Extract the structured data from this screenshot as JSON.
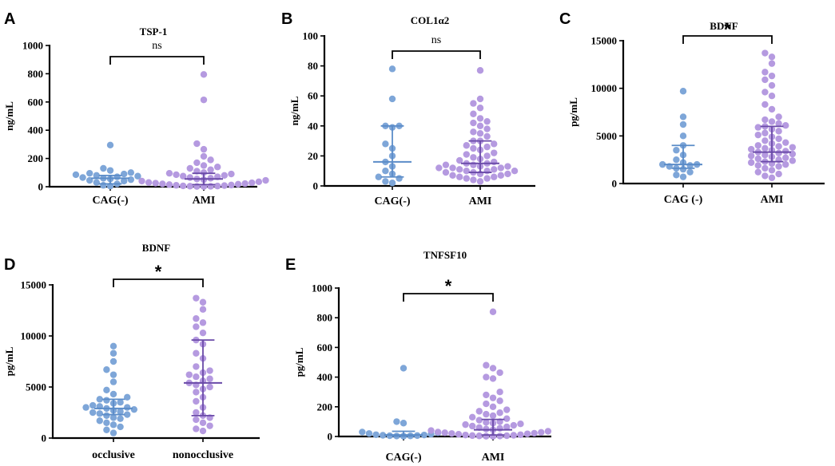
{
  "colors": {
    "blue": "#7ea6d8",
    "blue_line": "#5b8cc8",
    "purple": "#b59ae0",
    "purple_line": "#6a4aa8",
    "axis": "#000000"
  },
  "chart_data": [
    {
      "panel": "A",
      "type": "scatter",
      "title": "TSP-1",
      "ylabel": "ng/mL",
      "categories": [
        "CAG(-)",
        "AMI"
      ],
      "ylim": [
        0,
        1000
      ],
      "yticks": [
        0,
        200,
        400,
        600,
        800,
        1000
      ],
      "significance": "ns",
      "series": [
        {
          "name": "CAG(-)",
          "values": [
            295,
            130,
            115,
            100,
            95,
            90,
            85,
            80,
            75,
            70,
            65,
            60,
            55,
            50,
            45,
            40,
            30,
            20,
            10,
            5
          ],
          "median": 60,
          "q1": 20,
          "q3": 80
        },
        {
          "name": "AMI",
          "values": [
            795,
            615,
            305,
            265,
            215,
            190,
            170,
            150,
            140,
            130,
            120,
            110,
            100,
            95,
            90,
            85,
            80,
            75,
            70,
            65,
            60,
            55,
            50,
            45,
            40,
            35,
            30,
            28,
            25,
            22,
            20,
            18,
            15,
            12,
            10,
            8,
            6,
            5,
            4,
            3,
            2,
            1
          ],
          "median": 55,
          "q1": 15,
          "q3": 95
        }
      ]
    },
    {
      "panel": "B",
      "type": "scatter",
      "title": "COL1α2",
      "ylabel": "ng/mL",
      "categories": [
        "CAG(-)",
        "AMI"
      ],
      "ylim": [
        0,
        100
      ],
      "yticks": [
        0,
        20,
        40,
        60,
        80,
        100
      ],
      "significance": "ns",
      "series": [
        {
          "name": "CAG(-)",
          "values": [
            78,
            58,
            40,
            40,
            39,
            28,
            25,
            20,
            16,
            13,
            10,
            8,
            6,
            5,
            3,
            2
          ],
          "median": 16,
          "q1": 6,
          "q3": 40
        },
        {
          "name": "AMI",
          "values": [
            77,
            58,
            55,
            52,
            48,
            45,
            43,
            42,
            40,
            38,
            36,
            35,
            33,
            30,
            30,
            28,
            27,
            26,
            25,
            24,
            22,
            21,
            20,
            19,
            18,
            17,
            16,
            15,
            15,
            14,
            14,
            13,
            13,
            12,
            12,
            12,
            11,
            11,
            10,
            10,
            10,
            9,
            9,
            8,
            8,
            7,
            7,
            6,
            6,
            5,
            5,
            4,
            3
          ],
          "median": 15,
          "q1": 9,
          "q3": 30
        }
      ]
    },
    {
      "panel": "C",
      "type": "scatter",
      "title": "BDNF",
      "ylabel": "pg/mL",
      "categories": [
        "CAG  (-)",
        "AMI"
      ],
      "ylim": [
        0,
        15000
      ],
      "yticks": [
        0,
        5000,
        10000,
        15000
      ],
      "significance": "*",
      "series": [
        {
          "name": "CAG  (-)",
          "values": [
            9700,
            7000,
            6200,
            5000,
            4000,
            3500,
            3000,
            2500,
            2200,
            2000,
            2000,
            1900,
            1800,
            1600,
            1500,
            1200,
            900,
            700
          ],
          "median": 2000,
          "q1": 1600,
          "q3": 4000
        },
        {
          "name": "AMI",
          "values": [
            13700,
            13300,
            12600,
            11700,
            11300,
            10900,
            10300,
            9600,
            9200,
            8300,
            7800,
            7000,
            6700,
            6500,
            6300,
            6100,
            6000,
            5900,
            5700,
            5500,
            5300,
            5100,
            4900,
            4700,
            4500,
            4300,
            4200,
            4000,
            3900,
            3800,
            3700,
            3600,
            3500,
            3400,
            3300,
            3200,
            3100,
            3000,
            2900,
            2800,
            2700,
            2600,
            2500,
            2400,
            2300,
            2200,
            2100,
            2000,
            1900,
            1800,
            1600,
            1400,
            1200,
            1000,
            800,
            600
          ],
          "median": 3300,
          "q1": 2300,
          "q3": 6000
        }
      ]
    },
    {
      "panel": "D",
      "type": "scatter",
      "title": "BDNF",
      "ylabel": "pg/mL",
      "categories": [
        "occlusive",
        "nonocclusive"
      ],
      "ylim": [
        0,
        15000
      ],
      "yticks": [
        0,
        5000,
        10000,
        15000
      ],
      "significance": "*",
      "series": [
        {
          "name": "occlusive",
          "values": [
            9000,
            8300,
            7500,
            6700,
            6200,
            5500,
            4700,
            4300,
            4000,
            3800,
            3700,
            3500,
            3400,
            3200,
            3100,
            3000,
            3000,
            2900,
            2800,
            2700,
            2600,
            2500,
            2400,
            2300,
            2200,
            2000,
            1900,
            1700,
            1500,
            1300,
            1100,
            800,
            500
          ],
          "median": 2900,
          "q1": 2300,
          "q3": 3800
        },
        {
          "name": "nonocclusive",
          "values": [
            13700,
            13300,
            12600,
            11700,
            11300,
            10900,
            10300,
            9600,
            9200,
            8300,
            7800,
            7000,
            6600,
            6400,
            6200,
            6000,
            5800,
            5600,
            5400,
            5200,
            5000,
            4800,
            4500,
            4000,
            3600,
            3000,
            2500,
            2200,
            2000,
            1800,
            1500,
            1200,
            900,
            700
          ],
          "median": 5400,
          "q1": 2200,
          "q3": 9600
        }
      ]
    },
    {
      "panel": "E",
      "type": "scatter",
      "title": "TNFSF10",
      "ylabel": "pg/mL",
      "categories": [
        "CAG(-)",
        "AMI"
      ],
      "ylim": [
        0,
        1000
      ],
      "yticks": [
        0,
        200,
        400,
        600,
        800,
        1000
      ],
      "significance": "*",
      "series": [
        {
          "name": "CAG(-)",
          "values": [
            460,
            100,
            90,
            30,
            25,
            20,
            15,
            12,
            10,
            8,
            6,
            5,
            4,
            3,
            2
          ],
          "median": 10,
          "q1": 3,
          "q3": 35
        },
        {
          "name": "AMI",
          "values": [
            840,
            480,
            460,
            430,
            400,
            390,
            300,
            280,
            260,
            240,
            220,
            200,
            180,
            170,
            160,
            150,
            140,
            130,
            120,
            110,
            100,
            95,
            90,
            85,
            80,
            75,
            70,
            65,
            60,
            55,
            50,
            45,
            40,
            35,
            30,
            28,
            25,
            22,
            20,
            18,
            15,
            12,
            10,
            8,
            6,
            5,
            4,
            3,
            2,
            1
          ],
          "median": 45,
          "q1": 10,
          "q3": 115
        }
      ]
    }
  ]
}
